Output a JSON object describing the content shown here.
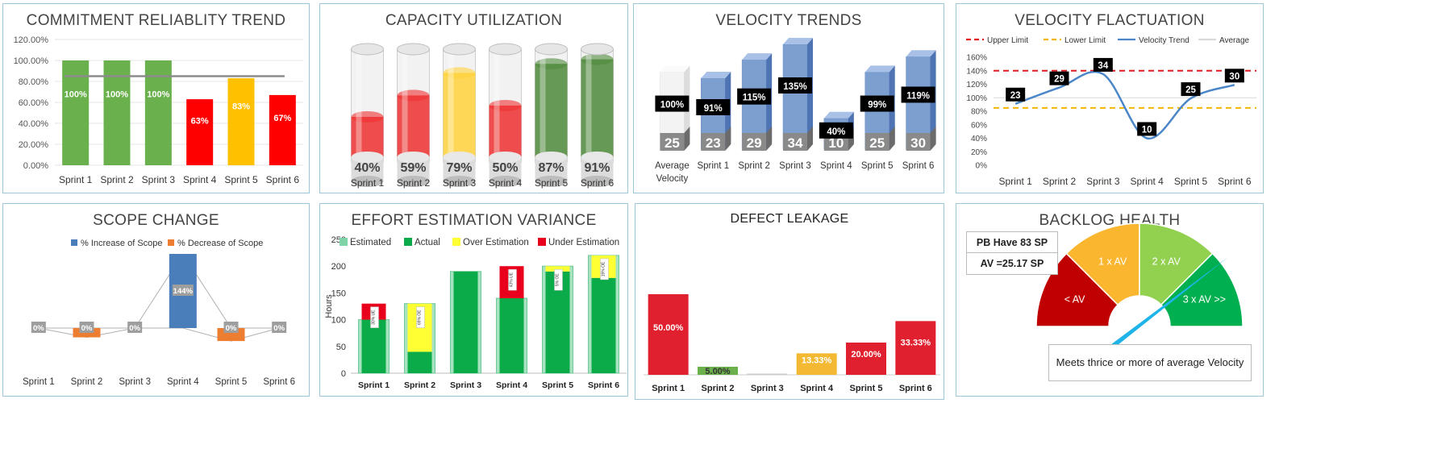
{
  "colors": {
    "green": "#6ab04c",
    "red": "#ff0000",
    "amber": "#ffc000",
    "blue": "#4a7ebb",
    "orange": "#ed7d31",
    "gray": "#9a9a9a"
  },
  "commitment": {
    "title": "COMMITMENT RELIABLITY TREND",
    "chart_data": {
      "type": "bar",
      "categories": [
        "Sprint 1",
        "Sprint 2",
        "Sprint 3",
        "Sprint 4",
        "Sprint 5",
        "Sprint 6"
      ],
      "values": [
        100,
        100,
        100,
        63,
        83,
        67
      ],
      "labels": [
        "100%",
        "100%",
        "100%",
        "63%",
        "83%",
        "67%"
      ],
      "colors": [
        "#6ab04c",
        "#6ab04c",
        "#6ab04c",
        "#ff0000",
        "#ffc000",
        "#ff0000"
      ],
      "target": 85,
      "ylim": [
        0,
        120
      ],
      "yticks": [
        "0.00%",
        "20.00%",
        "40.00%",
        "60.00%",
        "80.00%",
        "100.00%",
        "120.00%"
      ]
    }
  },
  "capacity": {
    "title": "CAPACITY UTILIZATION",
    "chart_data": {
      "type": "bar",
      "categories": [
        "Sprint 1",
        "Sprint 2",
        "Sprint 3",
        "Sprint 4",
        "Sprint 5",
        "Sprint 6"
      ],
      "values": [
        40,
        59,
        79,
        50,
        87,
        91
      ],
      "labels": [
        "40%",
        "59%",
        "79%",
        "50%",
        "87%",
        "91%"
      ],
      "colors": [
        "#ee3030",
        "#ee3030",
        "#ffd23a",
        "#ee3030",
        "#4e8a3a",
        "#4e8a3a"
      ]
    }
  },
  "velocity": {
    "title": "VELOCITY TRENDS",
    "chart_data": {
      "type": "bar",
      "categories": [
        "Average|Velocity",
        "Sprint 1",
        "Sprint 2",
        "Sprint 3",
        "Sprint 4",
        "Sprint 5",
        "Sprint 6"
      ],
      "values": [
        25,
        23,
        29,
        34,
        10,
        25,
        30
      ],
      "percents": [
        "100%",
        "91%",
        "115%",
        "135%",
        "40%",
        "99%",
        "119%"
      ]
    }
  },
  "fluctuation": {
    "title": "VELOCITY FLACTUATION",
    "legend": [
      "Upper Limit",
      "Lower Limit",
      "Velocity Trend",
      "Average"
    ],
    "chart_data": {
      "type": "line",
      "categories": [
        "Sprint 1",
        "Sprint 2",
        "Sprint 3",
        "Sprint 4",
        "Sprint 5",
        "Sprint 6"
      ],
      "values": [
        91,
        115,
        135,
        40,
        99,
        119
      ],
      "labels": [
        "23",
        "29",
        "34",
        "10",
        "25",
        "30"
      ],
      "upper": 140,
      "lower": 85,
      "average": 100,
      "ylim": [
        0,
        160
      ],
      "yticks": [
        "0%",
        "20%",
        "40%",
        "60%",
        "80%",
        "100%",
        "120%",
        "140%",
        "160%"
      ]
    }
  },
  "scope": {
    "title": "SCOPE CHANGE",
    "legend": [
      "% Increase of Scope",
      "% Decrease of Scope"
    ],
    "chart_data": {
      "type": "bar",
      "categories": [
        "Sprint 1",
        "Sprint 2",
        "Sprint 3",
        "Sprint 4",
        "Sprint 5",
        "Sprint 6"
      ],
      "increase": [
        0,
        0,
        0,
        144,
        0,
        0
      ],
      "decrease": [
        0,
        -25,
        0,
        0,
        -35,
        0
      ],
      "labels": [
        "0%",
        "0%",
        "0%",
        "144%",
        "0%",
        "0%"
      ]
    }
  },
  "effort": {
    "title": "EFFORT ESTIMATION VARIANCE",
    "legend": [
      "Estimated",
      "Actual",
      "Over Estimation",
      "Under Estimation"
    ],
    "ylabel": "Hours",
    "chart_data": {
      "type": "bar",
      "categories": [
        "Sprint 1",
        "Sprint 2",
        "Sprint 3",
        "Sprint 4",
        "Sprint 5",
        "Sprint 6"
      ],
      "estimated": [
        100,
        130,
        190,
        140,
        200,
        220
      ],
      "actual": [
        130,
        40,
        190,
        200,
        190,
        178
      ],
      "notes": [
        "30% UE",
        "69% OE",
        "",
        "43% UE",
        "5% OE",
        "19% OE"
      ],
      "ylim": [
        0,
        250
      ],
      "yticks": [
        "0",
        "50",
        "100",
        "150",
        "200",
        "250"
      ]
    }
  },
  "defect": {
    "title": "DEFECT LEAKAGE",
    "chart_data": {
      "type": "bar",
      "categories": [
        "Sprint 1",
        "Sprint 2",
        "Sprint 3",
        "Sprint 4",
        "Sprint 5",
        "Sprint 6"
      ],
      "values": [
        50,
        5,
        0,
        13.33,
        20,
        33.33
      ],
      "labels": [
        "50.00%",
        "5.00%",
        "",
        "13.33%",
        "20.00%",
        "33.33%"
      ],
      "colors": [
        "#e0202e",
        "#6ab04c",
        "#cccccc",
        "#f4b933",
        "#e0202e",
        "#e0202e"
      ]
    }
  },
  "backlog": {
    "title": "BACKLOG HEALTH",
    "pb": "PB Have 83 SP",
    "av": "AV =25.17 SP",
    "segments": [
      "< AV",
      "1 x AV",
      "2 x AV",
      "3 x AV >>"
    ],
    "status": "Meets thrice or more of average Velocity"
  }
}
